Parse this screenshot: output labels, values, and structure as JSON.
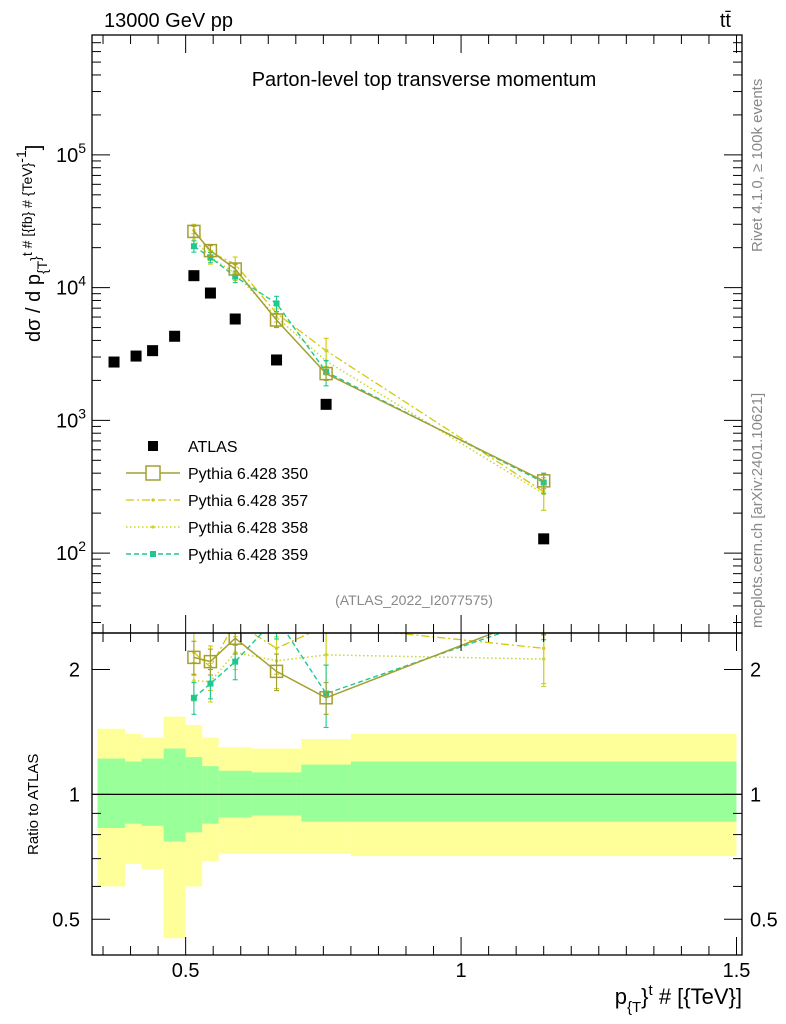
{
  "header": {
    "energy_label": "13000 GeV pp",
    "process_label": "tt̄"
  },
  "side_labels": {
    "rivet": "Rivet 4.1.0, ≥ 100k events",
    "mcplots": "mcplots.cern.ch [arXiv:2401.10621]"
  },
  "colors": {
    "atlas": "#000000",
    "p350": "#a3a032",
    "p357": "#d4c80a",
    "p358": "#ccd62a",
    "p359": "#1ec890",
    "band_outer": "#ffff99",
    "band_inner": "#99ff99"
  },
  "chart_data": [
    {
      "type": "scatter",
      "title": "Parton-level top transverse momentum",
      "ylabel": "dσ / d p_{T}^{t} # [{fb} # {TeV}^{-1}]",
      "ylabel_parts": {
        "main": "dσ / d p",
        "sub": "{T",
        "sup": "}",
        "rest": "t # [{fb} # {TeV}",
        "rest_sup": "-1",
        "end": "]"
      },
      "yscale": "log",
      "ylim": [
        25,
        800000
      ],
      "xlim": [
        0.33,
        1.51
      ],
      "y_ticks": [
        {
          "base": "10",
          "exp": "2",
          "value": 100
        },
        {
          "base": "10",
          "exp": "3",
          "value": 1000
        },
        {
          "base": "10",
          "exp": "4",
          "value": 10000
        },
        {
          "base": "10",
          "exp": "5",
          "value": 100000
        }
      ],
      "reference": "(ATLAS_2022_I2077575)",
      "legend": [
        {
          "key": "atlas",
          "label": "ATLAS"
        },
        {
          "key": "p350",
          "label": "Pythia 6.428 350"
        },
        {
          "key": "p357",
          "label": "Pythia 6.428 357"
        },
        {
          "key": "p358",
          "label": "Pythia 6.428 358"
        },
        {
          "key": "p359",
          "label": "Pythia 6.428 359"
        }
      ],
      "legend_position": "lower-left",
      "series": [
        {
          "key": "atlas",
          "name": "ATLAS",
          "style": "square-filled",
          "x": [
            0.37,
            0.41,
            0.44,
            0.48,
            0.515,
            0.545,
            0.59,
            0.665,
            0.755,
            1.15
          ],
          "y": [
            2750,
            3050,
            3350,
            4300,
            12300,
            9100,
            5800,
            2850,
            1320,
            128
          ]
        },
        {
          "key": "p350",
          "name": "Pythia 6.428 350",
          "style": "square-open-solid",
          "x": [
            0.515,
            0.545,
            0.59,
            0.665,
            0.755,
            1.15
          ],
          "y": [
            26500,
            19000,
            13800,
            5700,
            2250,
            350
          ],
          "yerr": [
            2500,
            1700,
            1200,
            700,
            250,
            45
          ]
        },
        {
          "key": "p357",
          "name": "Pythia 6.428 357",
          "style": "dashdot",
          "x": [
            0.515,
            0.545,
            0.59,
            0.665,
            0.755,
            1.15
          ],
          "y": [
            27000,
            18500,
            15000,
            6400,
            3350,
            290
          ],
          "yerr": [
            3000,
            2500,
            2000,
            900,
            800,
            80
          ]
        },
        {
          "key": "p358",
          "name": "Pythia 6.428 358",
          "style": "dotted",
          "x": [
            0.515,
            0.545,
            0.59,
            0.665,
            0.755,
            1.15
          ],
          "y": [
            23000,
            17000,
            12800,
            6000,
            2800,
            280
          ],
          "yerr": [
            2500,
            2000,
            1500,
            900,
            600,
            70
          ]
        },
        {
          "key": "p359",
          "name": "Pythia 6.428 359",
          "style": "dashed-small-square",
          "x": [
            0.515,
            0.545,
            0.59,
            0.665,
            0.755,
            1.15
          ],
          "y": [
            20500,
            16900,
            12100,
            7600,
            2320,
            340
          ],
          "yerr": [
            2000,
            1500,
            1200,
            1000,
            500,
            60
          ]
        }
      ]
    },
    {
      "type": "ratio",
      "ylabel": "Ratio to ATLAS",
      "yscale": "log",
      "ylim": [
        0.41,
        2.45
      ],
      "xlim": [
        0.33,
        1.51
      ],
      "xlabel_parts": {
        "main": "p",
        "sub": "{T",
        "rest": "}",
        "sup": "t",
        "end": " # [{TeV}]"
      },
      "x_ticks": [
        {
          "value": 0.5,
          "label": "0.5"
        },
        {
          "value": 1,
          "label": "1"
        },
        {
          "value": 1.5,
          "label": "1.5"
        }
      ],
      "y_ticks": [
        {
          "value": 0.5,
          "label": "0.5"
        },
        {
          "value": 1,
          "label": "1"
        },
        {
          "value": 2,
          "label": "2"
        }
      ],
      "bands": [
        {
          "x0": 0.34,
          "x1": 0.39,
          "lo_outer": 0.6,
          "hi_outer": 1.44,
          "lo_inner": 0.83,
          "hi_inner": 1.22
        },
        {
          "x0": 0.39,
          "x1": 0.42,
          "lo_outer": 0.68,
          "hi_outer": 1.4,
          "lo_inner": 0.85,
          "hi_inner": 1.2
        },
        {
          "x0": 0.42,
          "x1": 0.46,
          "lo_outer": 0.66,
          "hi_outer": 1.37,
          "lo_inner": 0.84,
          "hi_inner": 1.22
        },
        {
          "x0": 0.46,
          "x1": 0.5,
          "lo_outer": 0.45,
          "hi_outer": 1.54,
          "lo_inner": 0.77,
          "hi_inner": 1.29
        },
        {
          "x0": 0.5,
          "x1": 0.53,
          "lo_outer": 0.6,
          "hi_outer": 1.47,
          "lo_inner": 0.81,
          "hi_inner": 1.23
        },
        {
          "x0": 0.53,
          "x1": 0.56,
          "lo_outer": 0.69,
          "hi_outer": 1.37,
          "lo_inner": 0.85,
          "hi_inner": 1.17
        },
        {
          "x0": 0.56,
          "x1": 0.62,
          "lo_outer": 0.72,
          "hi_outer": 1.3,
          "lo_inner": 0.88,
          "hi_inner": 1.14
        },
        {
          "x0": 0.62,
          "x1": 0.71,
          "lo_outer": 0.72,
          "hi_outer": 1.29,
          "lo_inner": 0.89,
          "hi_inner": 1.13
        },
        {
          "x0": 0.71,
          "x1": 0.8,
          "lo_outer": 0.72,
          "hi_outer": 1.36,
          "lo_inner": 0.86,
          "hi_inner": 1.18
        },
        {
          "x0": 0.8,
          "x1": 1.5,
          "lo_outer": 0.71,
          "hi_outer": 1.4,
          "lo_inner": 0.86,
          "hi_inner": 1.2
        }
      ],
      "series": [
        {
          "key": "p350",
          "x": [
            0.515,
            0.545,
            0.59,
            0.665,
            0.755,
            1.15
          ],
          "y": [
            2.14,
            2.09,
            2.38,
            1.98,
            1.71,
            2.73
          ],
          "yerr": [
            0.2,
            0.15,
            0.2,
            0.2,
            0.15,
            0.3
          ]
        },
        {
          "key": "p357",
          "x": [
            0.515,
            0.545,
            0.59,
            0.665,
            0.755,
            1.15
          ],
          "y": [
            2.2,
            2.03,
            2.6,
            2.25,
            2.55,
            2.25
          ],
          "yerr": [
            0.25,
            0.25,
            0.3,
            0.3,
            0.5,
            0.4
          ]
        },
        {
          "key": "p358",
          "x": [
            0.515,
            0.545,
            0.59,
            0.665,
            0.755,
            1.15
          ],
          "y": [
            1.88,
            1.87,
            2.2,
            2.1,
            2.17,
            2.12
          ],
          "yerr": [
            0.2,
            0.2,
            0.2,
            0.3,
            0.4,
            0.3
          ]
        },
        {
          "key": "p359",
          "x": [
            0.515,
            0.545,
            0.59,
            0.665,
            0.755,
            1.15
          ],
          "y": [
            1.71,
            1.85,
            2.09,
            2.67,
            1.75,
            2.66
          ],
          "yerr": [
            0.15,
            0.15,
            0.2,
            0.3,
            0.3,
            0.3
          ]
        }
      ]
    }
  ]
}
